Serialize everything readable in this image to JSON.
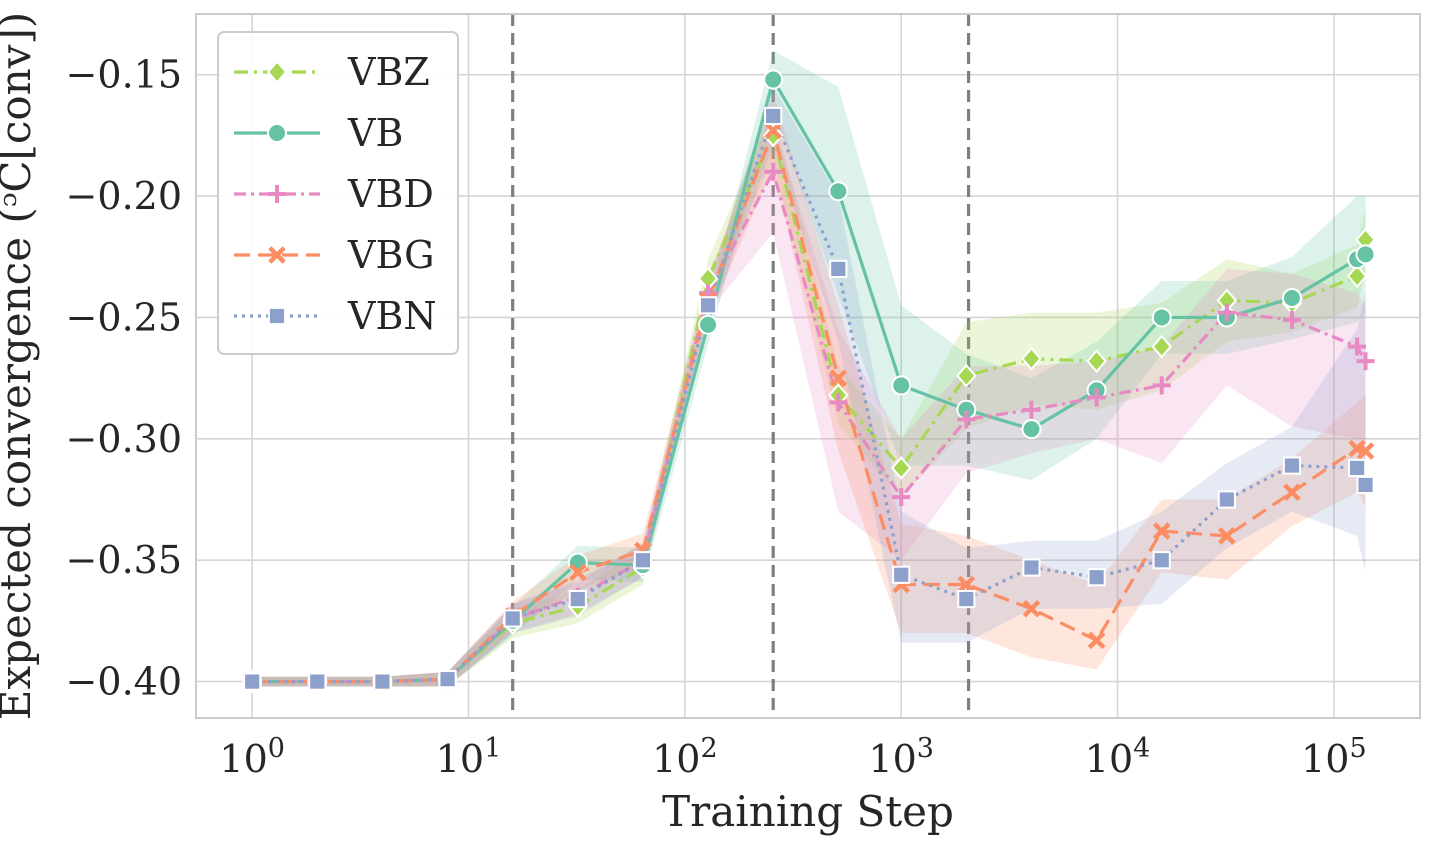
{
  "chart_data": {
    "type": "line",
    "xlabel": "Training Step",
    "ylabel": "Expected convergence (ᵓC[conv])",
    "xscale": "log",
    "xlim": [
      0.55,
      250000
    ],
    "ylim": [
      -0.415,
      -0.125
    ],
    "grid": true,
    "legend_position": "top-left",
    "xticks": [
      {
        "value": 1,
        "base": "10",
        "exp": "0"
      },
      {
        "value": 10,
        "base": "10",
        "exp": "1"
      },
      {
        "value": 100,
        "base": "10",
        "exp": "2"
      },
      {
        "value": 1000,
        "base": "10",
        "exp": "3"
      },
      {
        "value": 10000,
        "base": "10",
        "exp": "4"
      },
      {
        "value": 100000,
        "base": "10",
        "exp": "5"
      }
    ],
    "yticks": [
      {
        "value": -0.4,
        "label": "−0.40"
      },
      {
        "value": -0.35,
        "label": "−0.35"
      },
      {
        "value": -0.3,
        "label": "−0.30"
      },
      {
        "value": -0.25,
        "label": "−0.25"
      },
      {
        "value": -0.2,
        "label": "−0.20"
      },
      {
        "value": -0.15,
        "label": "−0.15"
      }
    ],
    "vlines": [
      16,
      256,
      2048
    ],
    "x": [
      1,
      2,
      4,
      8,
      16,
      32,
      64,
      128,
      256,
      512,
      1000,
      2000,
      4000,
      8000,
      16000,
      32000,
      64000,
      128000,
      140000
    ],
    "series": [
      {
        "name": "VBZ",
        "color": "#a6d854",
        "marker": "diamond",
        "dash": "14,6,3,6",
        "values": [
          -0.4,
          -0.4,
          -0.4,
          -0.399,
          -0.376,
          -0.369,
          -0.353,
          -0.234,
          -0.175,
          -0.282,
          -0.312,
          -0.274,
          -0.267,
          -0.268,
          -0.262,
          -0.243,
          -0.244,
          -0.233,
          -0.218
        ],
        "upper": [
          -0.398,
          -0.398,
          -0.398,
          -0.396,
          -0.37,
          -0.362,
          -0.346,
          -0.226,
          -0.165,
          -0.27,
          -0.3,
          -0.252,
          -0.248,
          -0.248,
          -0.244,
          -0.226,
          -0.232,
          -0.22,
          -0.205
        ],
        "lower": [
          -0.402,
          -0.402,
          -0.402,
          -0.402,
          -0.382,
          -0.376,
          -0.36,
          -0.242,
          -0.185,
          -0.294,
          -0.324,
          -0.296,
          -0.286,
          -0.288,
          -0.28,
          -0.26,
          -0.256,
          -0.246,
          -0.231
        ]
      },
      {
        "name": "VB",
        "color": "#66c2a5",
        "marker": "circle",
        "dash": "",
        "values": [
          -0.4,
          -0.4,
          -0.4,
          -0.399,
          -0.375,
          -0.351,
          -0.352,
          -0.253,
          -0.152,
          -0.198,
          -0.278,
          -0.288,
          -0.296,
          -0.28,
          -0.25,
          -0.25,
          -0.242,
          -0.226,
          -0.224
        ],
        "upper": [
          -0.398,
          -0.398,
          -0.398,
          -0.396,
          -0.369,
          -0.344,
          -0.345,
          -0.245,
          -0.14,
          -0.155,
          -0.245,
          -0.265,
          -0.275,
          -0.26,
          -0.235,
          -0.235,
          -0.225,
          -0.2,
          -0.2
        ],
        "lower": [
          -0.402,
          -0.402,
          -0.402,
          -0.402,
          -0.381,
          -0.358,
          -0.359,
          -0.261,
          -0.164,
          -0.241,
          -0.311,
          -0.311,
          -0.317,
          -0.3,
          -0.265,
          -0.265,
          -0.259,
          -0.252,
          -0.248
        ]
      },
      {
        "name": "VBD",
        "color": "#e78ac3",
        "marker": "plus",
        "dash": "12,5,3,5",
        "values": [
          -0.4,
          -0.4,
          -0.4,
          -0.399,
          -0.374,
          -0.365,
          -0.35,
          -0.24,
          -0.19,
          -0.285,
          -0.324,
          -0.292,
          -0.288,
          -0.283,
          -0.278,
          -0.248,
          -0.251,
          -0.262,
          -0.268
        ],
        "upper": [
          -0.398,
          -0.398,
          -0.398,
          -0.396,
          -0.368,
          -0.358,
          -0.343,
          -0.232,
          -0.17,
          -0.255,
          -0.3,
          -0.27,
          -0.27,
          -0.268,
          -0.262,
          -0.23,
          -0.232,
          -0.24,
          -0.245
        ],
        "lower": [
          -0.402,
          -0.402,
          -0.402,
          -0.402,
          -0.38,
          -0.372,
          -0.357,
          -0.248,
          -0.215,
          -0.33,
          -0.35,
          -0.314,
          -0.306,
          -0.3,
          -0.31,
          -0.278,
          -0.295,
          -0.3,
          -0.3
        ]
      },
      {
        "name": "VBG",
        "color": "#fc8d62",
        "marker": "cross",
        "dash": "16,8",
        "values": [
          -0.4,
          -0.4,
          -0.4,
          -0.399,
          -0.373,
          -0.355,
          -0.346,
          -0.243,
          -0.173,
          -0.275,
          -0.36,
          -0.36,
          -0.37,
          -0.383,
          -0.338,
          -0.34,
          -0.322,
          -0.304,
          -0.305
        ],
        "upper": [
          -0.398,
          -0.398,
          -0.398,
          -0.396,
          -0.367,
          -0.348,
          -0.339,
          -0.235,
          -0.158,
          -0.245,
          -0.335,
          -0.34,
          -0.35,
          -0.36,
          -0.325,
          -0.325,
          -0.308,
          -0.285,
          -0.282
        ],
        "lower": [
          -0.402,
          -0.402,
          -0.402,
          -0.402,
          -0.379,
          -0.362,
          -0.353,
          -0.251,
          -0.188,
          -0.305,
          -0.38,
          -0.38,
          -0.39,
          -0.395,
          -0.355,
          -0.358,
          -0.336,
          -0.322,
          -0.328
        ]
      },
      {
        "name": "VBN",
        "color": "#8da0cb",
        "marker": "square",
        "dash": "3,5",
        "values": [
          -0.4,
          -0.4,
          -0.4,
          -0.399,
          -0.374,
          -0.366,
          -0.35,
          -0.245,
          -0.167,
          -0.23,
          -0.356,
          -0.366,
          -0.353,
          -0.357,
          -0.35,
          -0.325,
          -0.311,
          -0.312,
          -0.319
        ],
        "upper": [
          -0.398,
          -0.398,
          -0.398,
          -0.396,
          -0.368,
          -0.359,
          -0.343,
          -0.237,
          -0.155,
          -0.2,
          -0.33,
          -0.345,
          -0.342,
          -0.342,
          -0.33,
          -0.31,
          -0.295,
          -0.255,
          -0.24
        ],
        "lower": [
          -0.402,
          -0.402,
          -0.402,
          -0.402,
          -0.38,
          -0.373,
          -0.357,
          -0.253,
          -0.179,
          -0.26,
          -0.384,
          -0.384,
          -0.37,
          -0.37,
          -0.368,
          -0.345,
          -0.33,
          -0.34,
          -0.355
        ]
      }
    ]
  }
}
